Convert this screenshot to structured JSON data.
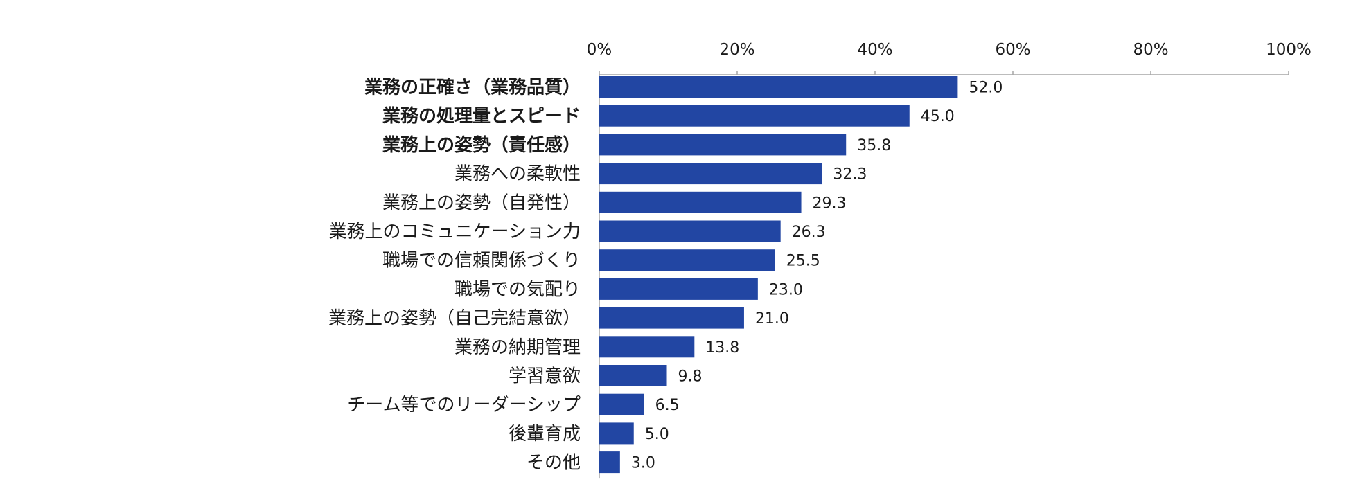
{
  "chart_data": {
    "type": "bar",
    "orientation": "horizontal",
    "title": "",
    "xlabel": "",
    "ylabel": "",
    "xlim": [
      0,
      100
    ],
    "ticks": [
      "0%",
      "20%",
      "40%",
      "60%",
      "80%",
      "100%"
    ],
    "tick_values": [
      0,
      20,
      40,
      60,
      80,
      100
    ],
    "axis_position": "top",
    "grid": false,
    "legend": "none",
    "bar_color": "#2246a3",
    "categories": [
      "業務の正確さ（業務品質）",
      "業務の処理量とスピード",
      "業務上の姿勢（責任感）",
      "業務への柔軟性",
      "業務上の姿勢（自発性）",
      "業務上のコミュニケーション力",
      "職場での信頼関係づくり",
      "職場での気配り",
      "業務上の姿勢（自己完結意欲）",
      "業務の納期管理",
      "学習意欲",
      "チーム等でのリーダーシップ",
      "後輩育成",
      "その他"
    ],
    "bold_categories": [
      0,
      1,
      2
    ],
    "values": [
      52.0,
      45.0,
      35.8,
      32.3,
      29.3,
      26.3,
      25.5,
      23.0,
      21.0,
      13.8,
      9.8,
      6.5,
      5.0,
      3.0
    ],
    "value_labels": [
      "52.0",
      "45.0",
      "35.8",
      "32.3",
      "29.3",
      "26.3",
      "25.5",
      "23.0",
      "21.0",
      "13.8",
      "9.8",
      "6.5",
      "5.0",
      "3.0"
    ]
  }
}
